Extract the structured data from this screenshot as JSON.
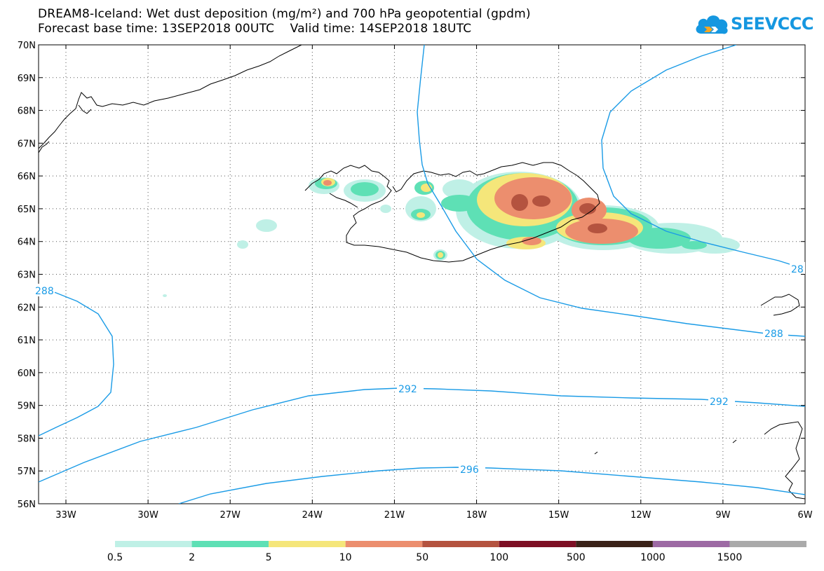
{
  "header": {
    "title_line1": "DREAM8-Iceland: Wet dust deposition (mg/m²) and 700 hPa geopotential (gpdm)",
    "title_line2": "Forecast base time: 13SEP2018 00UTC    Valid time: 14SEP2018 18UTC"
  },
  "logo": {
    "text": "SEEVCCC",
    "icon": "cloud-chevron-icon",
    "color": "#1597e0"
  },
  "map": {
    "lat_labels": [
      "70N",
      "69N",
      "68N",
      "67N",
      "66N",
      "65N",
      "64N",
      "63N",
      "62N",
      "61N",
      "60N",
      "59N",
      "58N",
      "57N",
      "56N"
    ],
    "lon_labels": [
      "33W",
      "30W",
      "27W",
      "24W",
      "21W",
      "18W",
      "15W",
      "12W",
      "9W",
      "6W"
    ],
    "contour_labels": [
      {
        "text": "288"
      },
      {
        "text": "288"
      },
      {
        "text": "28"
      },
      {
        "text": "292"
      },
      {
        "text": "292"
      },
      {
        "text": "296"
      }
    ],
    "contour_color": "#1a9be6"
  },
  "legend": {
    "colors": [
      "#bff0e6",
      "#5ee0b5",
      "#f5e67a",
      "#ec8e6e",
      "#b4533f",
      "#7d0f24",
      "#3a2218",
      "#9d6aa4",
      "#aaaaaa"
    ],
    "labels": [
      "0.5",
      "2",
      "5",
      "10",
      "50",
      "100",
      "500",
      "1000",
      "1500"
    ]
  }
}
